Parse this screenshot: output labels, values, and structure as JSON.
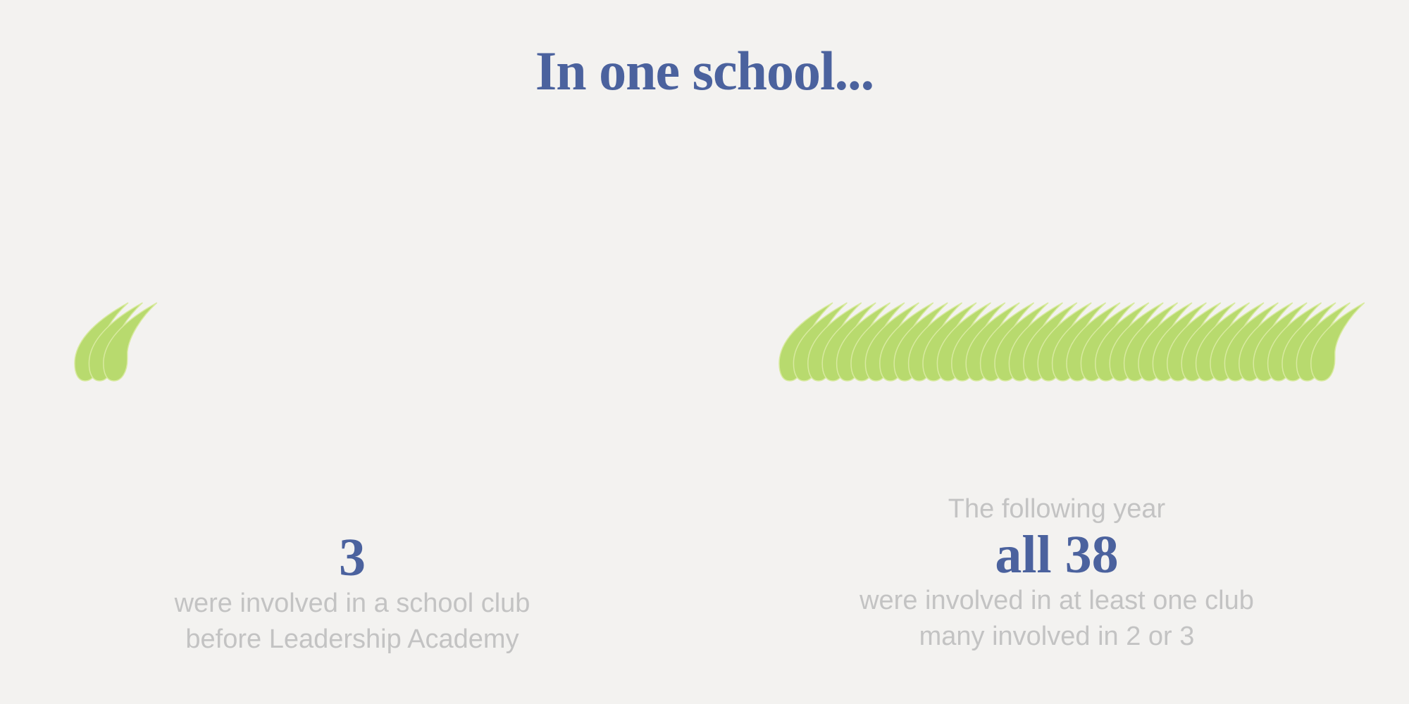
{
  "title": "In one school...",
  "colors": {
    "background": "#f3f2f0",
    "accent": "#4b629e",
    "muted_text": "#c3c3c3",
    "leaf": "#b8da6e",
    "leaf_edge": "#d8ea9f"
  },
  "before": {
    "count": 3,
    "number": "3",
    "line1": "were involved in a school club",
    "line2": "before Leadership Academy"
  },
  "after": {
    "count": 38,
    "kicker": "The following year",
    "number": "all 38",
    "line1": "were involved in at least one club",
    "line2": "many involved in 2 or 3"
  }
}
